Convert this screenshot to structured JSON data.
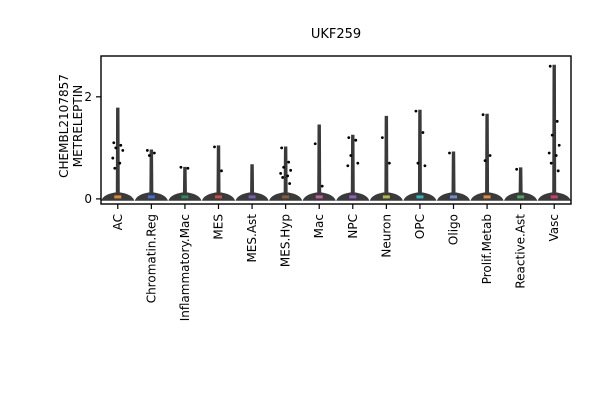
{
  "chart_data": {
    "type": "violin",
    "title": "UKF259",
    "ylabel_lines": [
      "CHEMBL2107857",
      "METRELEPTIN"
    ],
    "xlabel": "",
    "ylim": [
      -0.1,
      2.8
    ],
    "yticks": [
      0,
      2
    ],
    "grid": false,
    "categories": [
      "AC",
      "Chromatin.Reg",
      "Inflammatory.Mac",
      "MES",
      "MES.Ast",
      "MES.Hyp",
      "Mac",
      "NPC",
      "Neuron",
      "OPC",
      "Oligo",
      "Prolif.Metab",
      "Reactive.Ast",
      "Vasc"
    ],
    "series": [
      {
        "category": "AC",
        "max": 1.78,
        "violin_color": "#e08a2a",
        "points": [
          1.1,
          1.05,
          1.0,
          0.95,
          0.8,
          0.7,
          0.6
        ]
      },
      {
        "category": "Chromatin.Reg",
        "max": 0.96,
        "violin_color": "#3f6fd8",
        "points": [
          0.95,
          0.9,
          0.85
        ]
      },
      {
        "category": "Inflammatory.Mac",
        "max": 0.62,
        "violin_color": "#2a8c5a",
        "points": [
          0.62,
          0.6
        ]
      },
      {
        "category": "MES",
        "max": 1.04,
        "violin_color": "#d24b3c",
        "points": [
          1.02,
          0.55
        ]
      },
      {
        "category": "MES.Ast",
        "max": 0.67,
        "violin_color": "#7a5bb8",
        "points": []
      },
      {
        "category": "MES.Hyp",
        "max": 1.02,
        "violin_color": "#8c5a3c",
        "points": [
          1.0,
          0.72,
          0.62,
          0.56,
          0.5,
          0.45,
          0.42,
          0.3
        ]
      },
      {
        "category": "Mac",
        "max": 1.45,
        "violin_color": "#c85aa8",
        "points": [
          1.08,
          0.25
        ]
      },
      {
        "category": "NPC",
        "max": 1.25,
        "violin_color": "#9b59d0",
        "points": [
          1.2,
          1.15,
          0.85,
          0.7,
          0.65
        ]
      },
      {
        "category": "Neuron",
        "max": 1.62,
        "violin_color": "#b8b83a",
        "points": [
          1.2,
          0.7
        ]
      },
      {
        "category": "OPC",
        "max": 1.74,
        "violin_color": "#2ab5c8",
        "points": [
          1.72,
          1.3,
          0.7,
          0.65
        ]
      },
      {
        "category": "Oligo",
        "max": 0.92,
        "violin_color": "#6a8fd8",
        "points": [
          0.9
        ]
      },
      {
        "category": "Prolif.Metab",
        "max": 1.66,
        "violin_color": "#e08a3a",
        "points": [
          1.65,
          0.85,
          0.75
        ]
      },
      {
        "category": "Reactive.Ast",
        "max": 0.61,
        "violin_color": "#4aa85a",
        "points": [
          0.58
        ]
      },
      {
        "category": "Vasc",
        "max": 2.62,
        "violin_color": "#d23c6a",
        "points": [
          2.6,
          1.52,
          1.25,
          1.05,
          0.9,
          0.85,
          0.7,
          0.55
        ]
      }
    ]
  }
}
